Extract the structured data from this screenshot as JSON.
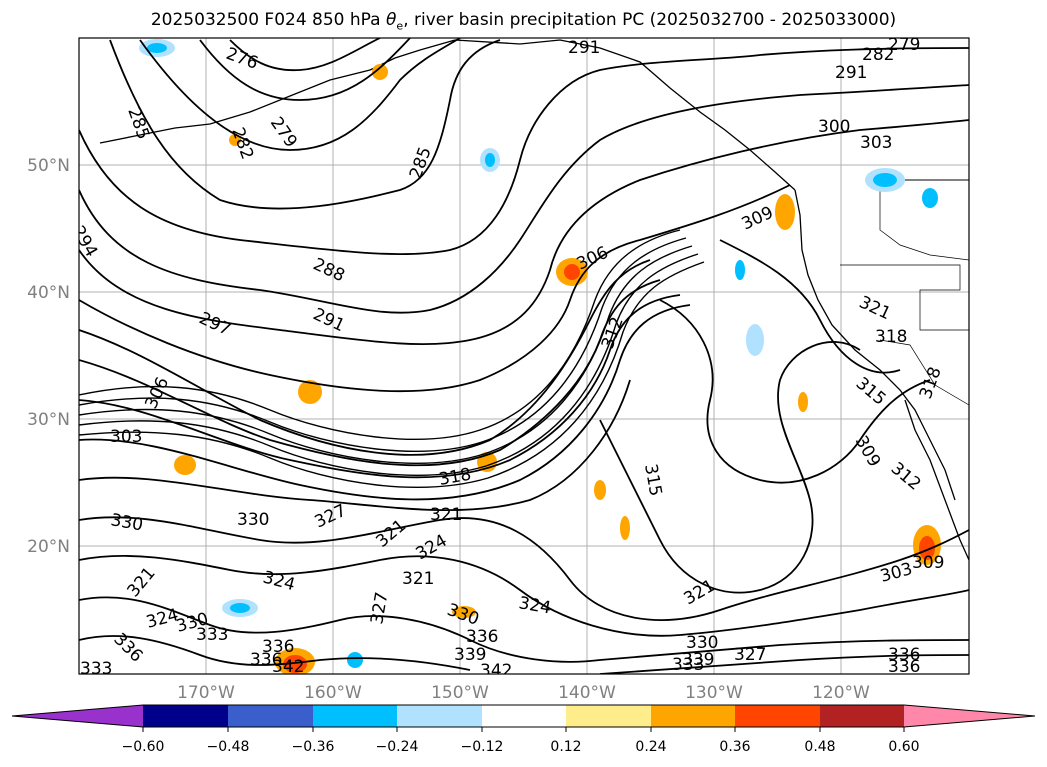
{
  "title": {
    "prefix": "2025032500 F024 850 hPa ",
    "theta": "θ",
    "sub": "e",
    "suffix": ", river basin precipitation PC (2025032700 - 2025033000)"
  },
  "lat_labels": [
    "50°N",
    "40°N",
    "30°N",
    "20°N"
  ],
  "lon_labels": [
    "170°W",
    "160°W",
    "150°W",
    "140°W",
    "130°W",
    "120°W"
  ],
  "colorbar": {
    "colors": [
      "#9932cc",
      "#00008b",
      "#3a5fcd",
      "#00bfff",
      "#b0e2ff",
      "#ffffff",
      "#ffec8b",
      "#ffa500",
      "#ff4500",
      "#b22222",
      "#ff88aa"
    ],
    "ticks": [
      "−0.60",
      "−0.48",
      "−0.36",
      "−0.24",
      "−0.12",
      "0.12",
      "0.24",
      "0.36",
      "0.48",
      "0.60"
    ]
  },
  "contour_labels": [
    "276",
    "291",
    "279",
    "282",
    "285",
    "279",
    "282",
    "285",
    "291",
    "300",
    "303",
    "294",
    "288",
    "306",
    "309",
    "297",
    "291",
    "312",
    "321",
    "318",
    "318",
    "306",
    "303",
    "315",
    "309",
    "318",
    "312",
    "315",
    "330",
    "330",
    "327",
    "321",
    "321",
    "324",
    "321",
    "324",
    "321",
    "327",
    "324",
    "330",
    "336",
    "321",
    "303",
    "309",
    "324",
    "330",
    "333",
    "336",
    "339",
    "336",
    "336",
    "333",
    "333",
    "342",
    "342",
    "336",
    "330",
    "327",
    "339",
    "336"
  ]
}
